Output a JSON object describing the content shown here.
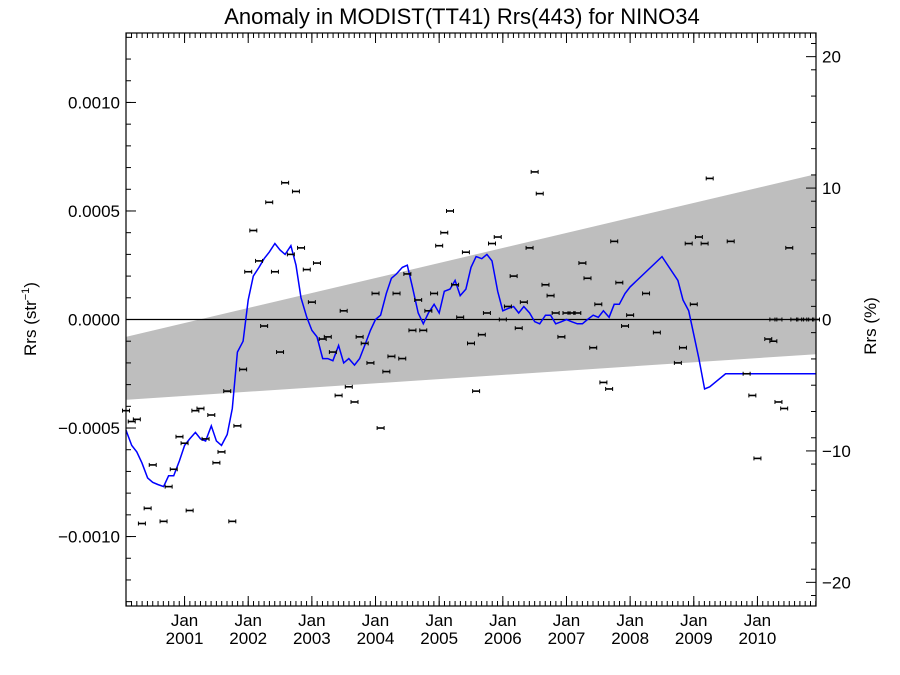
{
  "chart_data": {
    "type": "scatter",
    "title": "Anomaly in MODIST(TT41) Rrs(443) for NINO34",
    "ylabel_left": "Rrs (str",
    "ylabel_left_sup": "−1",
    "ylabel_left_end": ")",
    "ylabel_right": "Rrs (%)",
    "xlabel": "",
    "grid": false,
    "legend": "none",
    "colors": {
      "line": "#0000ff",
      "band": "#bebebe",
      "points": "#000000",
      "zero_line": "#000000"
    },
    "x_range": [
      2000.08,
      2010.92
    ],
    "ylim_left": [
      -0.00132,
      0.00132
    ],
    "ylim_right": [
      -21.8,
      21.8
    ],
    "yticks_left": [
      {
        "value": -0.001,
        "label": "−0.0010"
      },
      {
        "value": -0.0005,
        "label": "−0.0005"
      },
      {
        "value": 0.0,
        "label": "0.0000"
      },
      {
        "value": 0.0005,
        "label": "0.0005"
      },
      {
        "value": 0.001,
        "label": "0.0010"
      }
    ],
    "yticks_right": [
      {
        "value": -20,
        "label": "−20"
      },
      {
        "value": -10,
        "label": "−10"
      },
      {
        "value": 0,
        "label": "0"
      },
      {
        "value": 10,
        "label": "10"
      },
      {
        "value": 20,
        "label": "20"
      }
    ],
    "xticks": [
      {
        "value": 2001.0,
        "top": "Jan",
        "bottom": "2001"
      },
      {
        "value": 2002.0,
        "top": "Jan",
        "bottom": "2002"
      },
      {
        "value": 2003.0,
        "top": "Jan",
        "bottom": "2003"
      },
      {
        "value": 2004.0,
        "top": "Jan",
        "bottom": "2004"
      },
      {
        "value": 2005.0,
        "top": "Jan",
        "bottom": "2005"
      },
      {
        "value": 2006.0,
        "top": "Jan",
        "bottom": "2006"
      },
      {
        "value": 2007.0,
        "top": "Jan",
        "bottom": "2007"
      },
      {
        "value": 2008.0,
        "top": "Jan",
        "bottom": "2008"
      },
      {
        "value": 2009.0,
        "top": "Jan",
        "bottom": "2009"
      },
      {
        "value": 2010.0,
        "top": "Jan",
        "bottom": "2010"
      }
    ],
    "band": {
      "x": [
        2000.08,
        2010.92
      ],
      "upper": [
        -8e-05,
        0.00067
      ],
      "lower": [
        -0.00037,
        -0.00016
      ]
    },
    "line": {
      "x": [
        2000.08,
        2000.17,
        2000.25,
        2000.33,
        2000.42,
        2000.5,
        2000.58,
        2000.67,
        2000.75,
        2000.83,
        2000.92,
        2001.0,
        2001.08,
        2001.17,
        2001.25,
        2001.33,
        2001.42,
        2001.5,
        2001.58,
        2001.67,
        2001.75,
        2001.83,
        2001.92,
        2002.0,
        2002.08,
        2002.17,
        2002.25,
        2002.33,
        2002.42,
        2002.5,
        2002.58,
        2002.67,
        2002.75,
        2002.83,
        2002.92,
        2003.0,
        2003.08,
        2003.17,
        2003.25,
        2003.33,
        2003.42,
        2003.5,
        2003.58,
        2003.67,
        2003.75,
        2003.83,
        2003.92,
        2004.0,
        2004.08,
        2004.17,
        2004.25,
        2004.33,
        2004.42,
        2004.5,
        2004.58,
        2004.67,
        2004.75,
        2004.83,
        2004.92,
        2005.0,
        2005.08,
        2005.17,
        2005.25,
        2005.33,
        2005.42,
        2005.5,
        2005.58,
        2005.67,
        2005.75,
        2005.83,
        2005.92,
        2006.0,
        2006.08,
        2006.17,
        2006.25,
        2006.33,
        2006.42,
        2006.5,
        2006.58,
        2006.67,
        2006.75,
        2006.83,
        2006.92,
        2007.0,
        2007.08,
        2007.17,
        2007.25,
        2007.33,
        2007.42,
        2007.5,
        2007.58,
        2007.67,
        2007.75,
        2007.83,
        2007.92,
        2008.0,
        2008.5,
        2008.75,
        2008.83,
        2008.92,
        2009.0,
        2009.08,
        2009.17,
        2009.25,
        2009.5,
        2009.75,
        2009.83,
        2009.92,
        2010.0,
        2010.08,
        2010.17,
        2010.25,
        2010.33,
        2010.42,
        2010.5,
        2010.58,
        2010.67,
        2010.75,
        2010.83,
        2010.92
      ],
      "y": [
        -0.00051,
        -0.00058,
        -0.00061,
        -0.00066,
        -0.00073,
        -0.00075,
        -0.00076,
        -0.00077,
        -0.00072,
        -0.00072,
        -0.00065,
        -0.00058,
        -0.00055,
        -0.00052,
        -0.00055,
        -0.00056,
        -0.00049,
        -0.00056,
        -0.00058,
        -0.00053,
        -0.00041,
        -0.00015,
        -0.0001,
        9e-05,
        0.0002,
        0.00024,
        0.00028,
        0.00031,
        0.00035,
        0.00032,
        0.0003,
        0.00034,
        0.00025,
        0.0001,
        1e-05,
        -5e-05,
        -8e-05,
        -0.00018,
        -0.00018,
        -0.00019,
        -0.00012,
        -0.0002,
        -0.00018,
        -0.00021,
        -0.00018,
        -0.00012,
        -5e-05,
        0.0,
        2e-05,
        0.00012,
        0.00019,
        0.00021,
        0.00024,
        0.00025,
        0.00015,
        3e-05,
        -2e-05,
        3e-05,
        7e-05,
        3e-05,
        0.00013,
        0.00014,
        0.00018,
        0.00011,
        0.00014,
        0.00024,
        0.00029,
        0.00028,
        0.0003,
        0.00027,
        0.00013,
        4e-05,
        5e-05,
        6e-05,
        3e-05,
        6e-05,
        3e-05,
        -1e-05,
        -2e-05,
        2e-05,
        2e-05,
        -2e-05,
        -1e-05,
        0.0,
        -1e-05,
        -2e-05,
        -2e-05,
        0.0,
        2e-05,
        1e-05,
        4e-05,
        1e-05,
        7e-05,
        7e-05,
        0.00012,
        0.00015,
        0.00029,
        0.00018,
        9e-05,
        4e-05,
        -7e-05,
        -0.00018,
        -0.00032,
        -0.00031,
        -0.00025,
        -0.00025,
        -0.00025,
        -0.00025,
        -0.00025,
        -0.00025,
        -0.00025,
        -0.00025,
        -0.00025,
        -0.00025,
        -0.00025,
        -0.00025,
        -0.00025,
        -0.00025,
        -0.00025,
        -0.00025
      ]
    },
    "points": {
      "x": [
        2000.08,
        2000.17,
        2000.25,
        2000.33,
        2000.42,
        2000.5,
        2000.67,
        2000.75,
        2000.83,
        2000.92,
        2001.0,
        2001.08,
        2001.17,
        2001.25,
        2001.33,
        2001.42,
        2001.5,
        2001.58,
        2001.67,
        2001.75,
        2001.83,
        2001.92,
        2002.0,
        2002.08,
        2002.17,
        2002.25,
        2002.33,
        2002.42,
        2002.5,
        2002.58,
        2002.67,
        2002.75,
        2002.83,
        2002.92,
        2003.0,
        2003.08,
        2003.17,
        2003.25,
        2003.33,
        2003.42,
        2003.5,
        2003.58,
        2003.67,
        2003.75,
        2003.83,
        2003.92,
        2004.0,
        2004.08,
        2004.17,
        2004.25,
        2004.33,
        2004.42,
        2004.5,
        2004.58,
        2004.67,
        2004.75,
        2004.83,
        2004.92,
        2005.0,
        2005.08,
        2005.17,
        2005.25,
        2005.33,
        2005.42,
        2005.5,
        2005.58,
        2005.67,
        2005.75,
        2005.83,
        2005.92,
        2006.0,
        2006.08,
        2006.17,
        2006.25,
        2006.33,
        2006.42,
        2006.5,
        2006.58,
        2006.67,
        2006.75,
        2006.83,
        2006.92,
        2007.0,
        2007.08,
        2007.17,
        2007.25,
        2007.33,
        2007.42,
        2007.5,
        2007.58,
        2007.67,
        2007.75,
        2007.83,
        2007.92,
        2008.0,
        2008.25,
        2008.42,
        2008.75,
        2008.83,
        2008.92,
        2009.0,
        2009.08,
        2009.17,
        2009.25,
        2009.58,
        2009.83,
        2009.92,
        2010.0,
        2010.17,
        2010.25,
        2010.33,
        2010.42,
        2010.5,
        2010.58,
        2010.67,
        2010.75,
        2010.83,
        2010.92,
        2010.25,
        2010.33
      ],
      "y": [
        -0.00042,
        -0.00047,
        -0.00046,
        -0.00094,
        -0.00087,
        -0.00067,
        -0.00093,
        -0.00077,
        -0.00069,
        -0.00054,
        -0.00057,
        -0.00088,
        -0.00042,
        -0.00041,
        -0.00055,
        -0.00044,
        -0.00066,
        -0.00061,
        -0.00033,
        -0.00093,
        -0.00049,
        -0.00023,
        0.00022,
        0.00041,
        0.00027,
        -3e-05,
        0.00054,
        0.00022,
        -0.00015,
        0.00063,
        0.0003,
        0.00059,
        0.00033,
        0.00023,
        8e-05,
        0.00026,
        -9e-05,
        -8e-05,
        -0.00015,
        -0.00035,
        4e-05,
        -0.00031,
        -0.00038,
        -8e-05,
        -0.00011,
        -0.0002,
        0.00012,
        -0.0005,
        -0.00024,
        -0.00017,
        0.00012,
        -0.00018,
        0.00021,
        -5e-05,
        9e-05,
        -5e-05,
        4e-05,
        0.00012,
        0.00034,
        0.0004,
        0.0005,
        0.00016,
        1e-05,
        0.00031,
        -0.00011,
        -0.00033,
        -7e-05,
        3e-05,
        0.00035,
        0.00038,
        0.0,
        6e-05,
        0.0002,
        -4e-05,
        8e-05,
        0.00033,
        0.00068,
        0.00058,
        0.00016,
        0.00011,
        3e-05,
        -8e-05,
        3e-05,
        3e-05,
        3e-05,
        0.00026,
        0.00019,
        -0.00013,
        7e-05,
        -0.00029,
        -0.00032,
        0.00036,
        0.00017,
        -3e-05,
        2e-05,
        0.00012,
        -6e-05,
        -0.0002,
        -0.00013,
        0.00035,
        7e-05,
        0.00038,
        0.00035,
        0.00065,
        0.00036,
        -0.00025,
        -0.00035,
        -0.00064,
        -9e-05,
        -0.0001,
        -0.00038,
        -0.00041,
        0.00033,
        0.0,
        0.0,
        0.0,
        0.0,
        0.0,
        0.0,
        0.0
      ]
    }
  }
}
